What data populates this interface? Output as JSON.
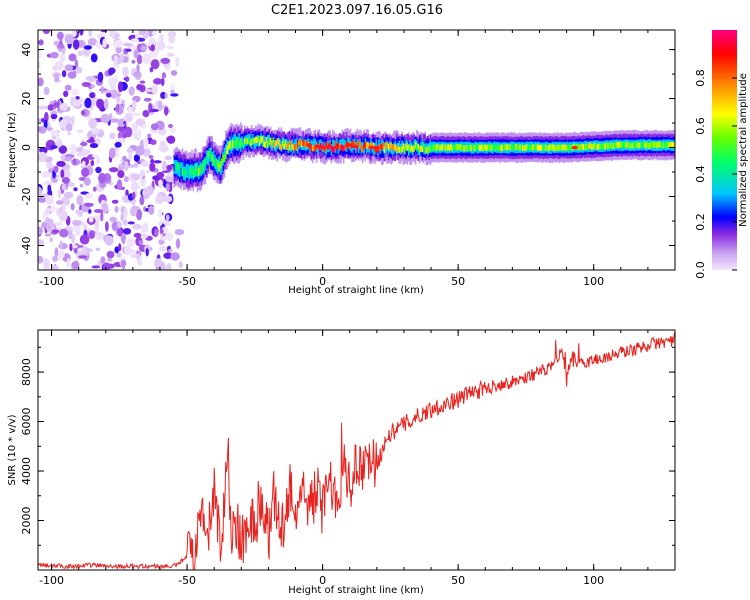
{
  "title": "C2E1.2023.097.16.05.G16",
  "chart_data": [
    {
      "type": "heatmap",
      "xlabel": "Height of straight line (km)",
      "ylabel": "Frequency (Hz)",
      "xlim": [
        -105,
        130
      ],
      "ylim": [
        -50,
        48
      ],
      "x_ticks": [
        -100,
        -50,
        0,
        50,
        100
      ],
      "y_ticks": [
        -40,
        -20,
        0,
        20,
        40
      ],
      "colorbar": {
        "label": "Normalized spectral amplitude",
        "range": [
          0,
          1
        ],
        "ticks": [
          "0.0",
          "0.2",
          "0.4",
          "0.6",
          "0.8"
        ],
        "colors": [
          "#f2e6fc",
          "#c9a3f2",
          "#8a2be2",
          "#0000ff",
          "#00c8ff",
          "#00ff66",
          "#66ff00",
          "#ffff00",
          "#ff8000",
          "#ff0000",
          "#ff0080"
        ]
      },
      "ridge": {
        "noise_region_x": [
          -105,
          -55
        ],
        "points": [
          {
            "x": -55,
            "freq": -8,
            "amp": 0.35
          },
          {
            "x": -50,
            "freq": -10,
            "amp": 0.45
          },
          {
            "x": -45,
            "freq": -9,
            "amp": 0.5
          },
          {
            "x": -42,
            "freq": -3,
            "amp": 0.45
          },
          {
            "x": -38,
            "freq": -8,
            "amp": 0.5
          },
          {
            "x": -35,
            "freq": 1,
            "amp": 0.55
          },
          {
            "x": -30,
            "freq": 2,
            "amp": 0.5
          },
          {
            "x": -25,
            "freq": 3,
            "amp": 0.55
          },
          {
            "x": -20,
            "freq": 2,
            "amp": 0.6
          },
          {
            "x": -15,
            "freq": 1,
            "amp": 0.65
          },
          {
            "x": -10,
            "freq": 1,
            "amp": 0.75
          },
          {
            "x": -5,
            "freq": 1,
            "amp": 0.8
          },
          {
            "x": 0,
            "freq": 0,
            "amp": 0.9
          },
          {
            "x": 10,
            "freq": 1,
            "amp": 0.85
          },
          {
            "x": 20,
            "freq": 0,
            "amp": 0.8
          },
          {
            "x": 30,
            "freq": 0,
            "amp": 0.6
          },
          {
            "x": 50,
            "freq": 0,
            "amp": 0.55
          },
          {
            "x": 70,
            "freq": 0,
            "amp": 0.55
          },
          {
            "x": 90,
            "freq": 0,
            "amp": 0.6
          },
          {
            "x": 110,
            "freq": 1,
            "amp": 0.55
          },
          {
            "x": 130,
            "freq": 1,
            "amp": 0.55
          }
        ]
      }
    },
    {
      "type": "line",
      "xlabel": "Height of straight line (km)",
      "ylabel": "SNR (10 * v/v)",
      "xlim": [
        -105,
        130
      ],
      "ylim": [
        0,
        9700
      ],
      "x_ticks": [
        -100,
        -50,
        0,
        50,
        100
      ],
      "y_ticks": [
        2000,
        4000,
        6000,
        8000
      ],
      "color": "#e8221e",
      "series": [
        {
          "x": [
            -105,
            -95,
            -85,
            -75,
            -65,
            -55,
            -50,
            -47,
            -45,
            -43,
            -40,
            -37,
            -35,
            -34,
            -32,
            -30,
            -27,
            -25,
            -22,
            -20,
            -18,
            -15,
            -12,
            -10,
            -8,
            -5,
            -2,
            0,
            3,
            5,
            8,
            10,
            13,
            15,
            18,
            20,
            23,
            25,
            30,
            35,
            40,
            45,
            50,
            55,
            60,
            65,
            70,
            75,
            80,
            85,
            88,
            90,
            92,
            95,
            100,
            105,
            110,
            115,
            120,
            125,
            130
          ],
          "y": [
            200,
            150,
            200,
            150,
            150,
            150,
            500,
            800,
            2200,
            1200,
            2500,
            1000,
            5600,
            1500,
            2000,
            900,
            2200,
            1800,
            2800,
            1200,
            3000,
            1500,
            3500,
            2300,
            3000,
            2600,
            3200,
            2400,
            3600,
            3000,
            4200,
            3500,
            4300,
            3800,
            4800,
            4200,
            5200,
            5500,
            5900,
            6200,
            6500,
            6700,
            6900,
            7200,
            7300,
            7500,
            7600,
            7800,
            8000,
            8200,
            8900,
            7800,
            8600,
            8300,
            8500,
            8600,
            8800,
            8900,
            9100,
            9200,
            9300
          ]
        }
      ]
    }
  ]
}
